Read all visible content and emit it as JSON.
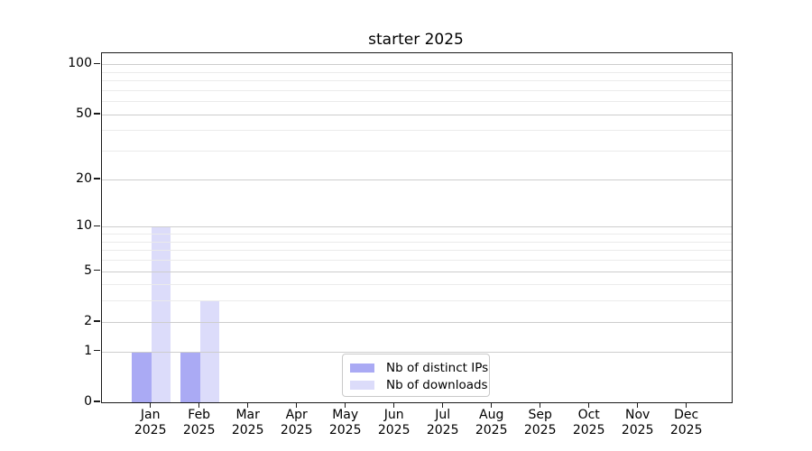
{
  "chart_data": {
    "type": "bar",
    "title": "starter 2025",
    "categories": [
      "Jan",
      "Feb",
      "Mar",
      "Apr",
      "May",
      "Jun",
      "Jul",
      "Aug",
      "Sep",
      "Oct",
      "Nov",
      "Dec"
    ],
    "category_year": "2025",
    "series": [
      {
        "name": "Nb of distinct IPs",
        "color": "#aaaaf4",
        "values": [
          1,
          1,
          0,
          0,
          0,
          0,
          0,
          0,
          0,
          0,
          0,
          0
        ]
      },
      {
        "name": "Nb of downloads",
        "color": "#dcdcfa",
        "values": [
          10,
          3,
          0,
          0,
          0,
          0,
          0,
          0,
          0,
          0,
          0,
          0
        ]
      }
    ],
    "xlabel": "",
    "ylabel": "",
    "yscale": "log1p",
    "ylim": [
      0,
      116.5
    ],
    "yticks": [
      0,
      1,
      2,
      5,
      10,
      20,
      50,
      100
    ],
    "yticks_minor": [
      3,
      4,
      6,
      7,
      8,
      9,
      30,
      40,
      60,
      70,
      80,
      90
    ],
    "grid": "horizontal",
    "legend_position": "lower center",
    "colors": {
      "grid_major": "#cdcdcd",
      "grid_minor": "#ebebeb",
      "axis": "#1a1a1a",
      "text": "#000000"
    }
  }
}
